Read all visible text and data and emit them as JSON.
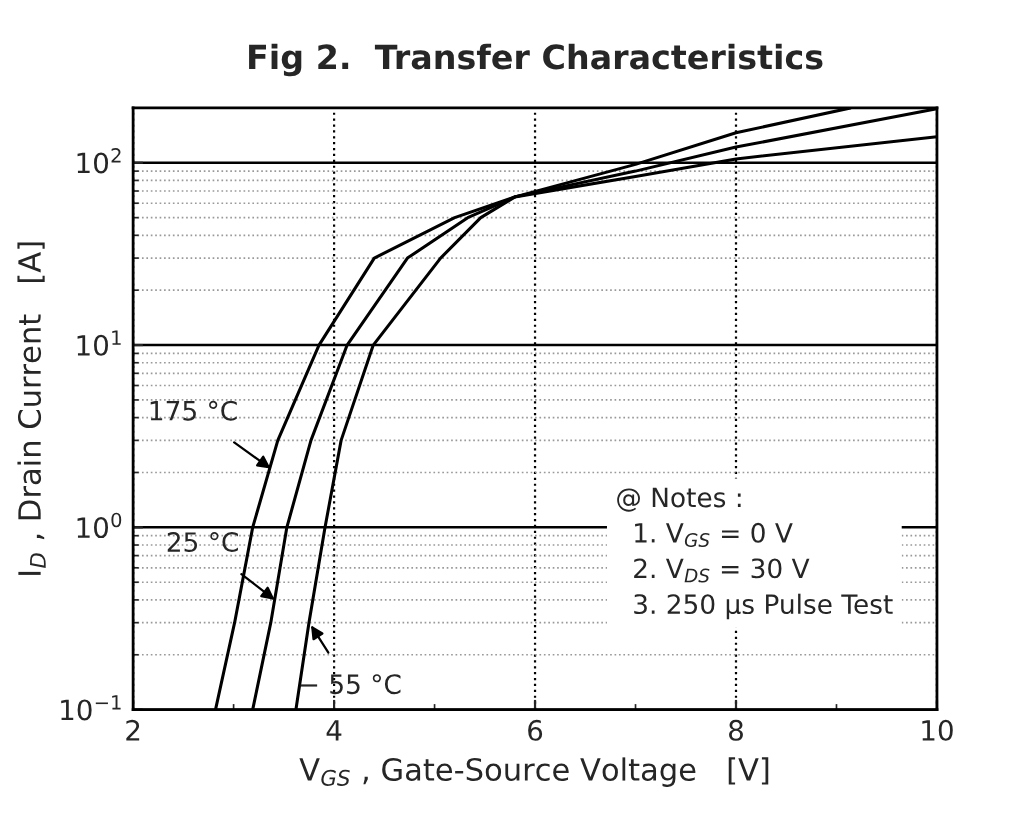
{
  "chart_data": {
    "type": "line",
    "title": "Fig 2.  Transfer Characteristics",
    "xlabel": "V$_{GS}$ , Gate-Source Voltage   [V]",
    "ylabel": "I$_{D}$ , Drain Current   [A]",
    "series": [
      {
        "color": "#000000",
        "x": [
          2.82,
          3.01,
          3.19,
          3.44,
          3.85,
          4.4,
          5.2,
          5.8,
          7,
          8,
          10
        ],
        "values": [
          0.1,
          0.3,
          1,
          3,
          10,
          30,
          50,
          65,
          84,
          105,
          139
        ]
      },
      {
        "color": "#000000",
        "x": [
          3.19,
          3.37,
          3.53,
          3.77,
          4.13,
          4.73,
          5.33,
          5.8,
          7,
          8,
          10
        ],
        "values": [
          0.1,
          0.3,
          1,
          3,
          10,
          30,
          50,
          65,
          90,
          122,
          198
        ]
      },
      {
        "color": "#000000",
        "x": [
          3.62,
          3.75,
          3.91,
          4.07,
          4.39,
          5.06,
          5.46,
          5.8,
          7,
          8,
          9.14
        ],
        "values": [
          0.1,
          0.3,
          1,
          3,
          10,
          30,
          50,
          65,
          98,
          146,
          200
        ]
      }
    ],
    "log": "y",
    "xlim": [
      2,
      10
    ],
    "ylim": [
      0.1,
      200
    ],
    "xticks": [
      2,
      4,
      6,
      8,
      10
    ],
    "yticks": [
      {
        "value": 0.1,
        "label": "10$^{−1}$"
      },
      {
        "value": 1,
        "label": "10$^{0}$"
      },
      {
        "value": 10,
        "label": "10$^{1}$"
      },
      {
        "value": 100,
        "label": "10$^{2}$"
      }
    ],
    "grid": true,
    "marker": "none",
    "line_style": "solid",
    "annotations": [
      {
        "text": "175 °C",
        "x": 3.37,
        "y": 2.1
      },
      {
        "text": "25 °C",
        "x": 3.41,
        "y": 0.4
      },
      {
        "text": "− 55 °C",
        "x": 3.77,
        "y": 0.29
      },
      "@ Notes :",
      "1. V$_{GS}$ = 0 V",
      "2. V$_{DS}$ = 30 V",
      "3. 250 μs Pulse Test"
    ]
  }
}
